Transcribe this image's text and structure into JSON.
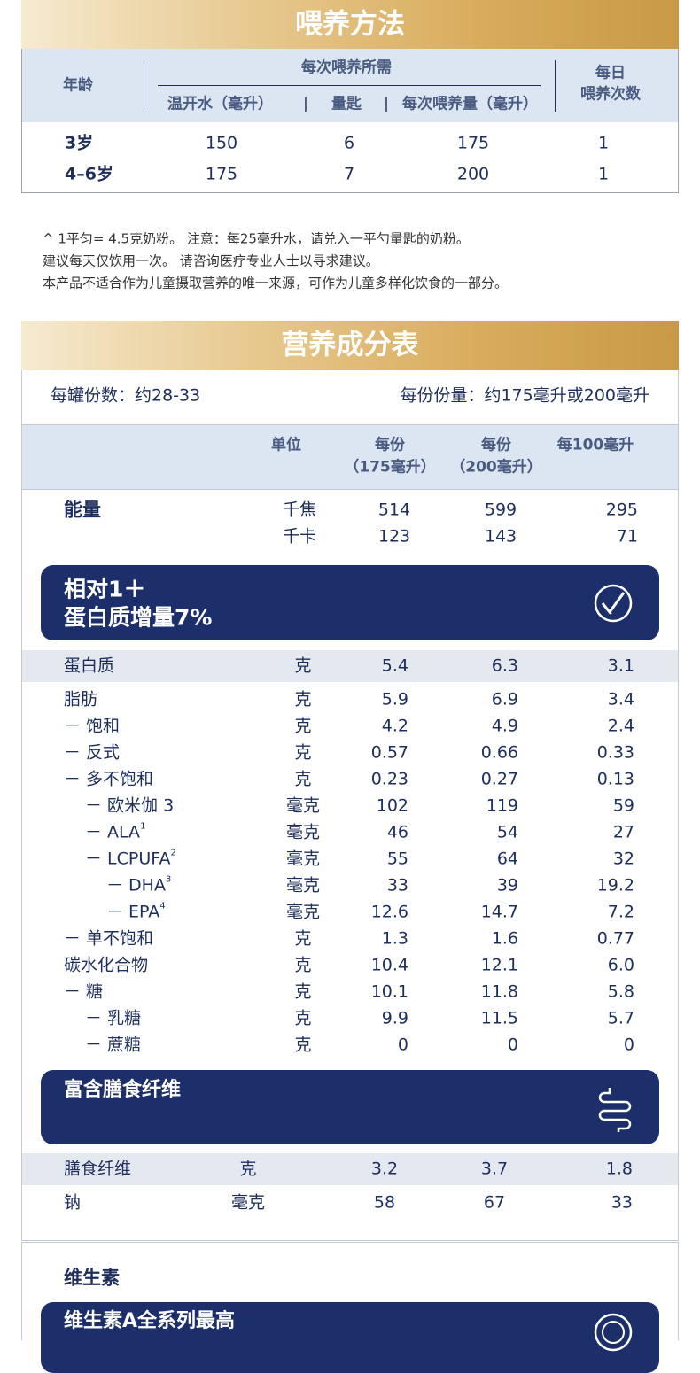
{
  "feeding": {
    "title": "喂养方法",
    "header": {
      "age": "年龄",
      "group": "每次喂养所需",
      "columns": [
        "温开水（毫升）",
        "量匙",
        "每次喂养量（毫升）"
      ],
      "separator": "|",
      "daily": [
        "每日",
        "喂养次数"
      ]
    },
    "rows": [
      [
        "3岁",
        "150",
        "6",
        "175",
        "1"
      ],
      [
        "4–6岁",
        "175",
        "7",
        "200",
        "1"
      ]
    ]
  },
  "notes": [
    "^ 1平匀= 4.5克奶粉。 注意：每25毫升水，请兑入一平勺量匙的奶粉。",
    "建议每天仅饮用一次。 请咨询医疗专业人士以寻求建议。",
    "本产品不适合作为儿童摄取营养的唯一来源，可作为儿童多样化饮食的一部分。"
  ],
  "nutrition": {
    "title": "营养成分表",
    "servings": "每罐份数：约28-33",
    "serving_size": "每份份量：约175毫升或200毫升",
    "header": {
      "unit": "单位",
      "col1": [
        "每份",
        "（175毫升）"
      ],
      "col2": [
        "每份",
        "（200毫升）"
      ],
      "col3": "每100毫升"
    },
    "energy": {
      "label": "能量",
      "rows": [
        [
          "千焦",
          "514",
          "599",
          "295"
        ],
        [
          "千卡",
          "123",
          "143",
          "71"
        ]
      ]
    },
    "banner1": [
      "相对1＋",
      "蛋白质增量7%"
    ],
    "rows": [
      {
        "label": "蛋白质",
        "unit": "克",
        "values": [
          "5.4",
          "6.3",
          "3.1"
        ]
      },
      {
        "label": "脂肪",
        "unit": "克",
        "values": [
          "5.9",
          "6.9",
          "3.4"
        ]
      },
      {
        "label": "－ 饱和",
        "unit": "克",
        "values": [
          "4.2",
          "4.9",
          "2.4"
        ]
      },
      {
        "label": "－ 反式",
        "unit": "克",
        "values": [
          "0.57",
          "0.66",
          "0.33"
        ]
      },
      {
        "label": "－ 多不饱和",
        "unit": "克",
        "values": [
          "0.23",
          "0.27",
          "0.13"
        ]
      },
      {
        "label": "－ 欧米伽 3",
        "unit": "毫克",
        "values": [
          "102",
          "119",
          "59"
        ]
      },
      {
        "label": "－ ALA",
        "sup": "1",
        "unit": "毫克",
        "values": [
          "46",
          "54",
          "27"
        ]
      },
      {
        "label": "－ LCPUFA",
        "sup": "2",
        "unit": "毫克",
        "values": [
          "55",
          "64",
          "32"
        ]
      },
      {
        "label": "－ DHA",
        "sup": "3",
        "unit": "毫克",
        "values": [
          "33",
          "39",
          "19.2"
        ]
      },
      {
        "label": "－ EPA",
        "sup": "4",
        "unit": "毫克",
        "values": [
          "12.6",
          "14.7",
          "7.2"
        ]
      },
      {
        "label": "－ 单不饱和",
        "unit": "克",
        "values": [
          "1.3",
          "1.6",
          "0.77"
        ]
      },
      {
        "label": "碳水化合物",
        "unit": "克",
        "values": [
          "10.4",
          "12.1",
          "6.0"
        ]
      },
      {
        "label": "－ 糖",
        "unit": "克",
        "values": [
          "10.1",
          "11.8",
          "5.8"
        ]
      },
      {
        "label": "－ 乳糖",
        "unit": "克",
        "values": [
          "9.9",
          "11.5",
          "5.7"
        ]
      },
      {
        "label": "－ 蔗糖",
        "unit": "克",
        "values": [
          "0",
          "0",
          "0"
        ]
      }
    ],
    "banner2": "富含膳食纤维",
    "rows2": [
      {
        "label": "膳食纤维",
        "unit": "克",
        "values": [
          "3.2",
          "3.7",
          "1.8"
        ]
      },
      {
        "label": "钠",
        "unit": "毫克",
        "values": [
          "58",
          "67",
          "33"
        ]
      }
    ],
    "vitamins": "维生素",
    "banner3": "维生素A全系列最高"
  }
}
